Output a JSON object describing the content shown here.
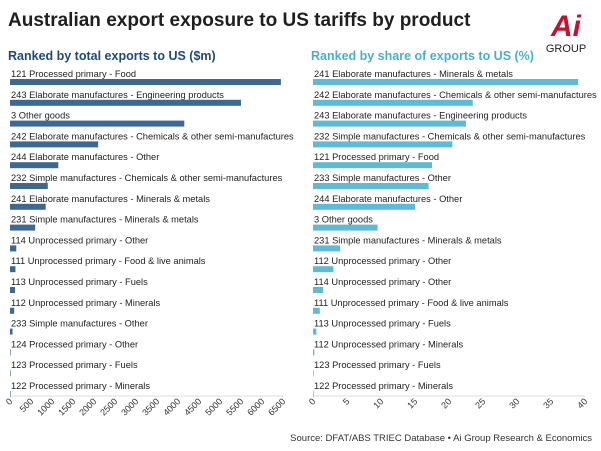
{
  "title": "Australian export exposure to US tariffs by product",
  "logo": {
    "mark": "Ai",
    "text": "GROUP",
    "color": "#c8102e"
  },
  "colors": {
    "left_bar": "#3e6894",
    "right_bar": "#5bbcd8",
    "left_title": "#1e4a7a",
    "right_title": "#47b0cf",
    "text": "#222222"
  },
  "source": "Source: DFAT/ABS TRIEC Database • Ai Group Research & Economics",
  "chart_data": [
    {
      "type": "bar",
      "orientation": "horizontal",
      "title": "Ranked by total exports to US ($m)",
      "categories": [
        "121 Processed primary - Food",
        "243 Elaborate manufactures - Engineering products",
        "3 Other goods",
        "242 Elaborate manufactures - Chemicals & other semi-manufactures",
        "244 Elaborate manufactures - Other",
        "232 Simple manufactures - Chemicals & other semi-manufactures",
        "241 Elaborate manufactures - Minerals & metals",
        "231 Simple manufactures - Minerals & metals",
        "114 Unprocessed primary - Other",
        "111 Unprocessed primary - Food & live animals",
        "113 Unprocessed primary - Fuels",
        "112 Unprocessed primary - Minerals",
        "233 Simple manufactures - Other",
        "124 Processed primary - Other",
        "123 Processed primary - Fuels",
        "122 Processed primary - Minerals"
      ],
      "values": [
        6450,
        5500,
        4150,
        2100,
        1150,
        900,
        850,
        600,
        150,
        130,
        120,
        100,
        60,
        10,
        5,
        5
      ],
      "xlim": [
        0,
        6500
      ],
      "ticks": [
        "0",
        "500",
        "1000",
        "1500",
        "2000",
        "2500",
        "3000",
        "3500",
        "4000",
        "4500",
        "5000",
        "5500",
        "6000",
        "6500"
      ]
    },
    {
      "type": "bar",
      "orientation": "horizontal",
      "title": "Ranked by share of exports to US (%)",
      "categories": [
        "241 Elaborate manufactures - Minerals & metals",
        "242 Elaborate manufactures - Chemicals & other semi-manufactures",
        "243 Elaborate manufactures - Engineering products",
        "232 Simple manufactures - Chemicals & other semi-manufactures",
        "121 Processed primary - Food",
        "233 Simple manufactures - Other",
        "244 Elaborate manufactures - Other",
        "3 Other goods",
        "231 Simple manufactures - Minerals & metals",
        "112 Unprocessed primary - Other",
        "114 Unprocessed primary - Other",
        "111 Unprocessed primary - Food & live animals",
        "113 Unprocessed primary - Fuels",
        "112 Unprocessed primary - Minerals",
        "123 Processed primary - Fuels",
        "122 Processed primary - Minerals"
      ],
      "values": [
        39,
        23.5,
        22.5,
        20.5,
        17.5,
        17,
        15,
        9.5,
        4,
        3,
        1.5,
        1,
        0.5,
        0.2,
        0.1,
        0.1
      ],
      "xlim": [
        0,
        40
      ],
      "ticks": [
        "0",
        "5",
        "10",
        "15",
        "20",
        "25",
        "30",
        "35",
        "40"
      ]
    }
  ]
}
